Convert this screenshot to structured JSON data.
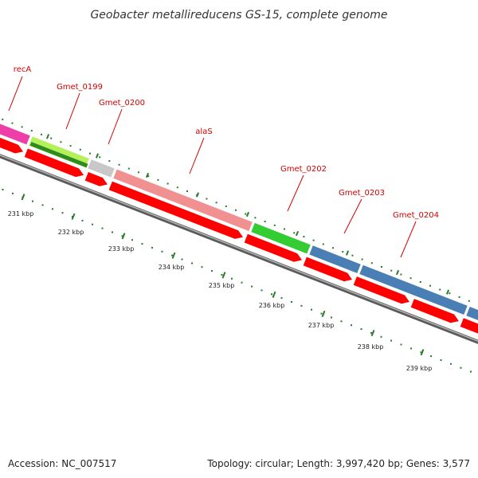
{
  "title": "Geobacter metallireducens GS-15, complete genome",
  "genes": [
    {
      "id": "recA",
      "label": "recA",
      "color": "#ee3fa8",
      "darkColor": "#ee3fa8"
    },
    {
      "id": "Gmet_0199",
      "label": "Gmet_0199",
      "color": "#b4f05a",
      "darkColor": "#2e8b22"
    },
    {
      "id": "Gmet_0200",
      "label": "Gmet_0200",
      "color": "#c8c8c8",
      "darkColor": "#c8c8c8"
    },
    {
      "id": "alaS",
      "label": "alaS",
      "color": "#f09090",
      "darkColor": "#f09090"
    },
    {
      "id": "Gmet_0202",
      "label": "Gmet_0202",
      "color": "#33cc33",
      "darkColor": "#33cc33"
    },
    {
      "id": "Gmet_0203",
      "label": "Gmet_0203",
      "color": "#4a7fb5",
      "darkColor": "#4a7fb5"
    },
    {
      "id": "Gmet_0204",
      "label": "Gmet_0204",
      "color": "#4a7fb5",
      "darkColor": "#4a7fb5"
    }
  ],
  "ticks": [
    "231 kbp",
    "232 kbp",
    "233 kbp",
    "234 kbp",
    "235 kbp",
    "236 kbp",
    "237 kbp",
    "238 kbp",
    "239 kbp"
  ],
  "footer": {
    "accession": "Accession: NC_007517",
    "summary": "Topology: circular; Length: 3,997,420 bp; Genes: 3,577"
  },
  "colors": {
    "cds": "#ff0000",
    "backbone": "#888888",
    "tickMarks": "#2a7a2a",
    "labelLines": "#d40000"
  }
}
